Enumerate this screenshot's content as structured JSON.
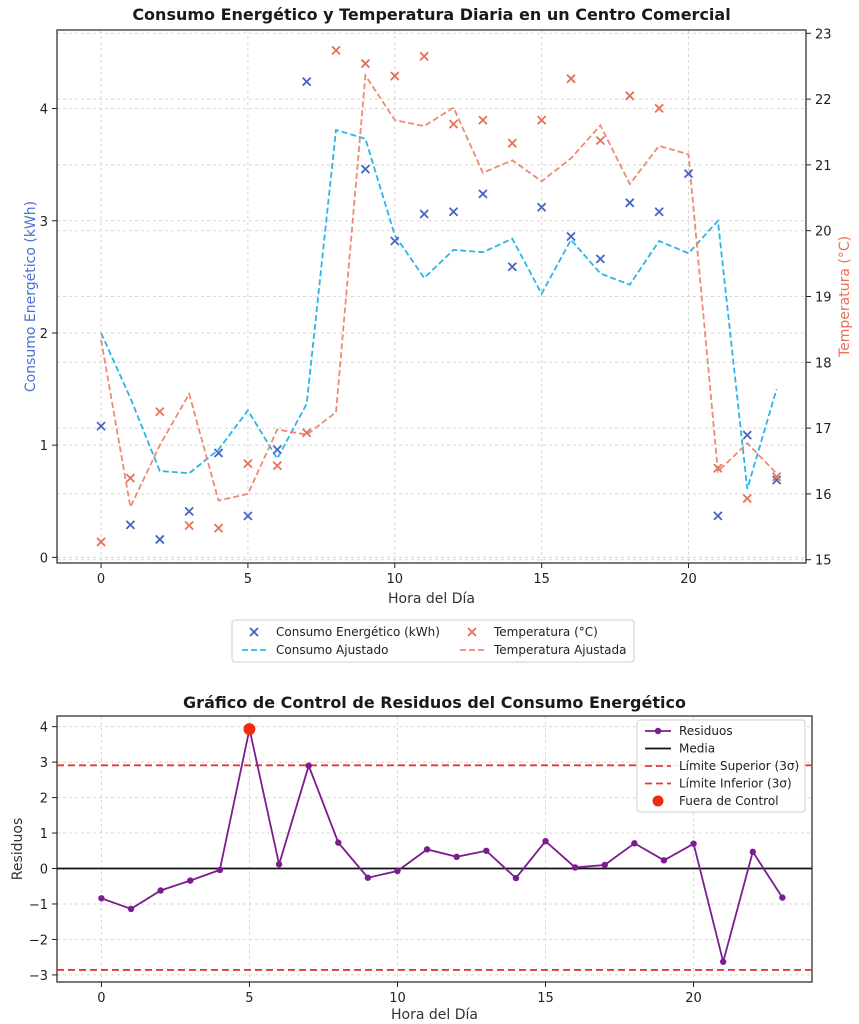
{
  "colors": {
    "energy_marker": "#4664c8",
    "energy_fit": "#29b6e6",
    "temp_marker": "#e8705a",
    "temp_fit": "#ee8a72",
    "residual": "#7b1d8e",
    "mean": "#111111",
    "limit": "#e53935",
    "out_of_control": "#ef2b12",
    "left_axis_label": "#4a6fd6",
    "right_axis_label": "#e8705a"
  },
  "chart_data": [
    {
      "type": "scatter",
      "title": "Consumo Energético y Temperatura Diaria en un Centro Comercial",
      "xlabel": "Hora del Día",
      "ylabel": "Consumo Energético (kWh)",
      "ylabel_right": "Temperatura (°C)",
      "x": [
        0,
        1,
        2,
        3,
        4,
        5,
        6,
        7,
        8,
        9,
        10,
        11,
        12,
        13,
        14,
        15,
        16,
        17,
        18,
        19,
        20,
        21,
        22,
        23
      ],
      "xlim": [
        -1.5,
        24.0
      ],
      "ylim": [
        -0.05,
        4.7
      ],
      "ylim_right": [
        14.95,
        23.05
      ],
      "xticks": [
        0,
        5,
        10,
        15,
        20
      ],
      "yticks": [
        0,
        1,
        2,
        3,
        4
      ],
      "yticks_right": [
        15,
        16,
        17,
        18,
        19,
        20,
        21,
        22,
        23
      ],
      "grid": true,
      "legend_position": "below",
      "series": [
        {
          "name": "Consumo Energético (kWh)",
          "kind": "scatter",
          "axis": "left",
          "values": [
            1.17,
            0.29,
            0.16,
            0.41,
            0.93,
            0.37,
            0.96,
            4.24,
            null,
            3.46,
            2.82,
            3.06,
            3.08,
            3.24,
            2.59,
            3.12,
            2.86,
            2.66,
            3.16,
            3.08,
            3.42,
            0.37,
            1.09,
            0.69
          ]
        },
        {
          "name": "Consumo Ajustado",
          "kind": "line",
          "axis": "left",
          "values": [
            2.0,
            1.42,
            0.77,
            0.75,
            0.96,
            1.31,
            0.88,
            1.37,
            3.81,
            3.73,
            2.87,
            2.49,
            2.74,
            2.72,
            2.84,
            2.35,
            2.83,
            2.53,
            2.43,
            2.82,
            2.71,
            3.0,
            0.61,
            1.5
          ]
        },
        {
          "name": "Temperatura (°C)",
          "kind": "scatter",
          "axis": "right",
          "values": [
            15.27,
            16.24,
            17.25,
            15.52,
            15.48,
            16.46,
            16.43,
            16.93,
            22.74,
            22.54,
            22.35,
            22.65,
            21.62,
            21.68,
            21.33,
            21.68,
            22.31,
            21.37,
            22.05,
            21.86,
            null,
            16.39,
            15.93,
            16.26
          ]
        },
        {
          "name": "Temperatura Ajustada",
          "kind": "line",
          "axis": "right",
          "values": [
            18.34,
            15.8,
            16.74,
            17.52,
            15.9,
            16.0,
            16.98,
            16.9,
            17.24,
            22.36,
            21.68,
            21.59,
            21.87,
            20.88,
            21.07,
            20.75,
            21.1,
            21.6,
            20.71,
            21.29,
            21.16,
            16.34,
            16.77,
            16.31
          ]
        }
      ]
    },
    {
      "type": "line",
      "title": "Gráfico de Control de Residuos del Consumo Energético",
      "xlabel": "Hora del Día",
      "ylabel": "Residuos",
      "x": [
        0,
        1,
        2,
        3,
        4,
        5,
        6,
        7,
        8,
        9,
        10,
        11,
        12,
        13,
        14,
        15,
        16,
        17,
        18,
        19,
        20,
        21,
        22,
        23
      ],
      "xlim": [
        -1.5,
        24.0
      ],
      "ylim": [
        -3.2,
        4.3
      ],
      "xticks": [
        0,
        5,
        10,
        15,
        20
      ],
      "yticks": [
        -3,
        -2,
        -1,
        0,
        1,
        2,
        3,
        4
      ],
      "grid": true,
      "legend_position": "top-right",
      "series": [
        {
          "name": "Residuos",
          "values": [
            -0.84,
            -1.14,
            -0.62,
            -0.34,
            -0.04,
            3.93,
            0.12,
            2.9,
            0.73,
            -0.26,
            -0.07,
            0.54,
            0.33,
            0.5,
            -0.27,
            0.77,
            0.03,
            0.1,
            0.71,
            0.23,
            0.7,
            -2.63,
            0.47,
            -0.82
          ]
        }
      ],
      "mean": 0,
      "upper_limit": 2.91,
      "lower_limit": -2.86,
      "out_of_control": [
        {
          "x": 5,
          "y": 3.93
        }
      ],
      "legend": [
        "Residuos",
        "Media",
        "Límite Superior (3σ)",
        "Límite Inferior (3σ)",
        "Fuera de Control"
      ]
    }
  ]
}
